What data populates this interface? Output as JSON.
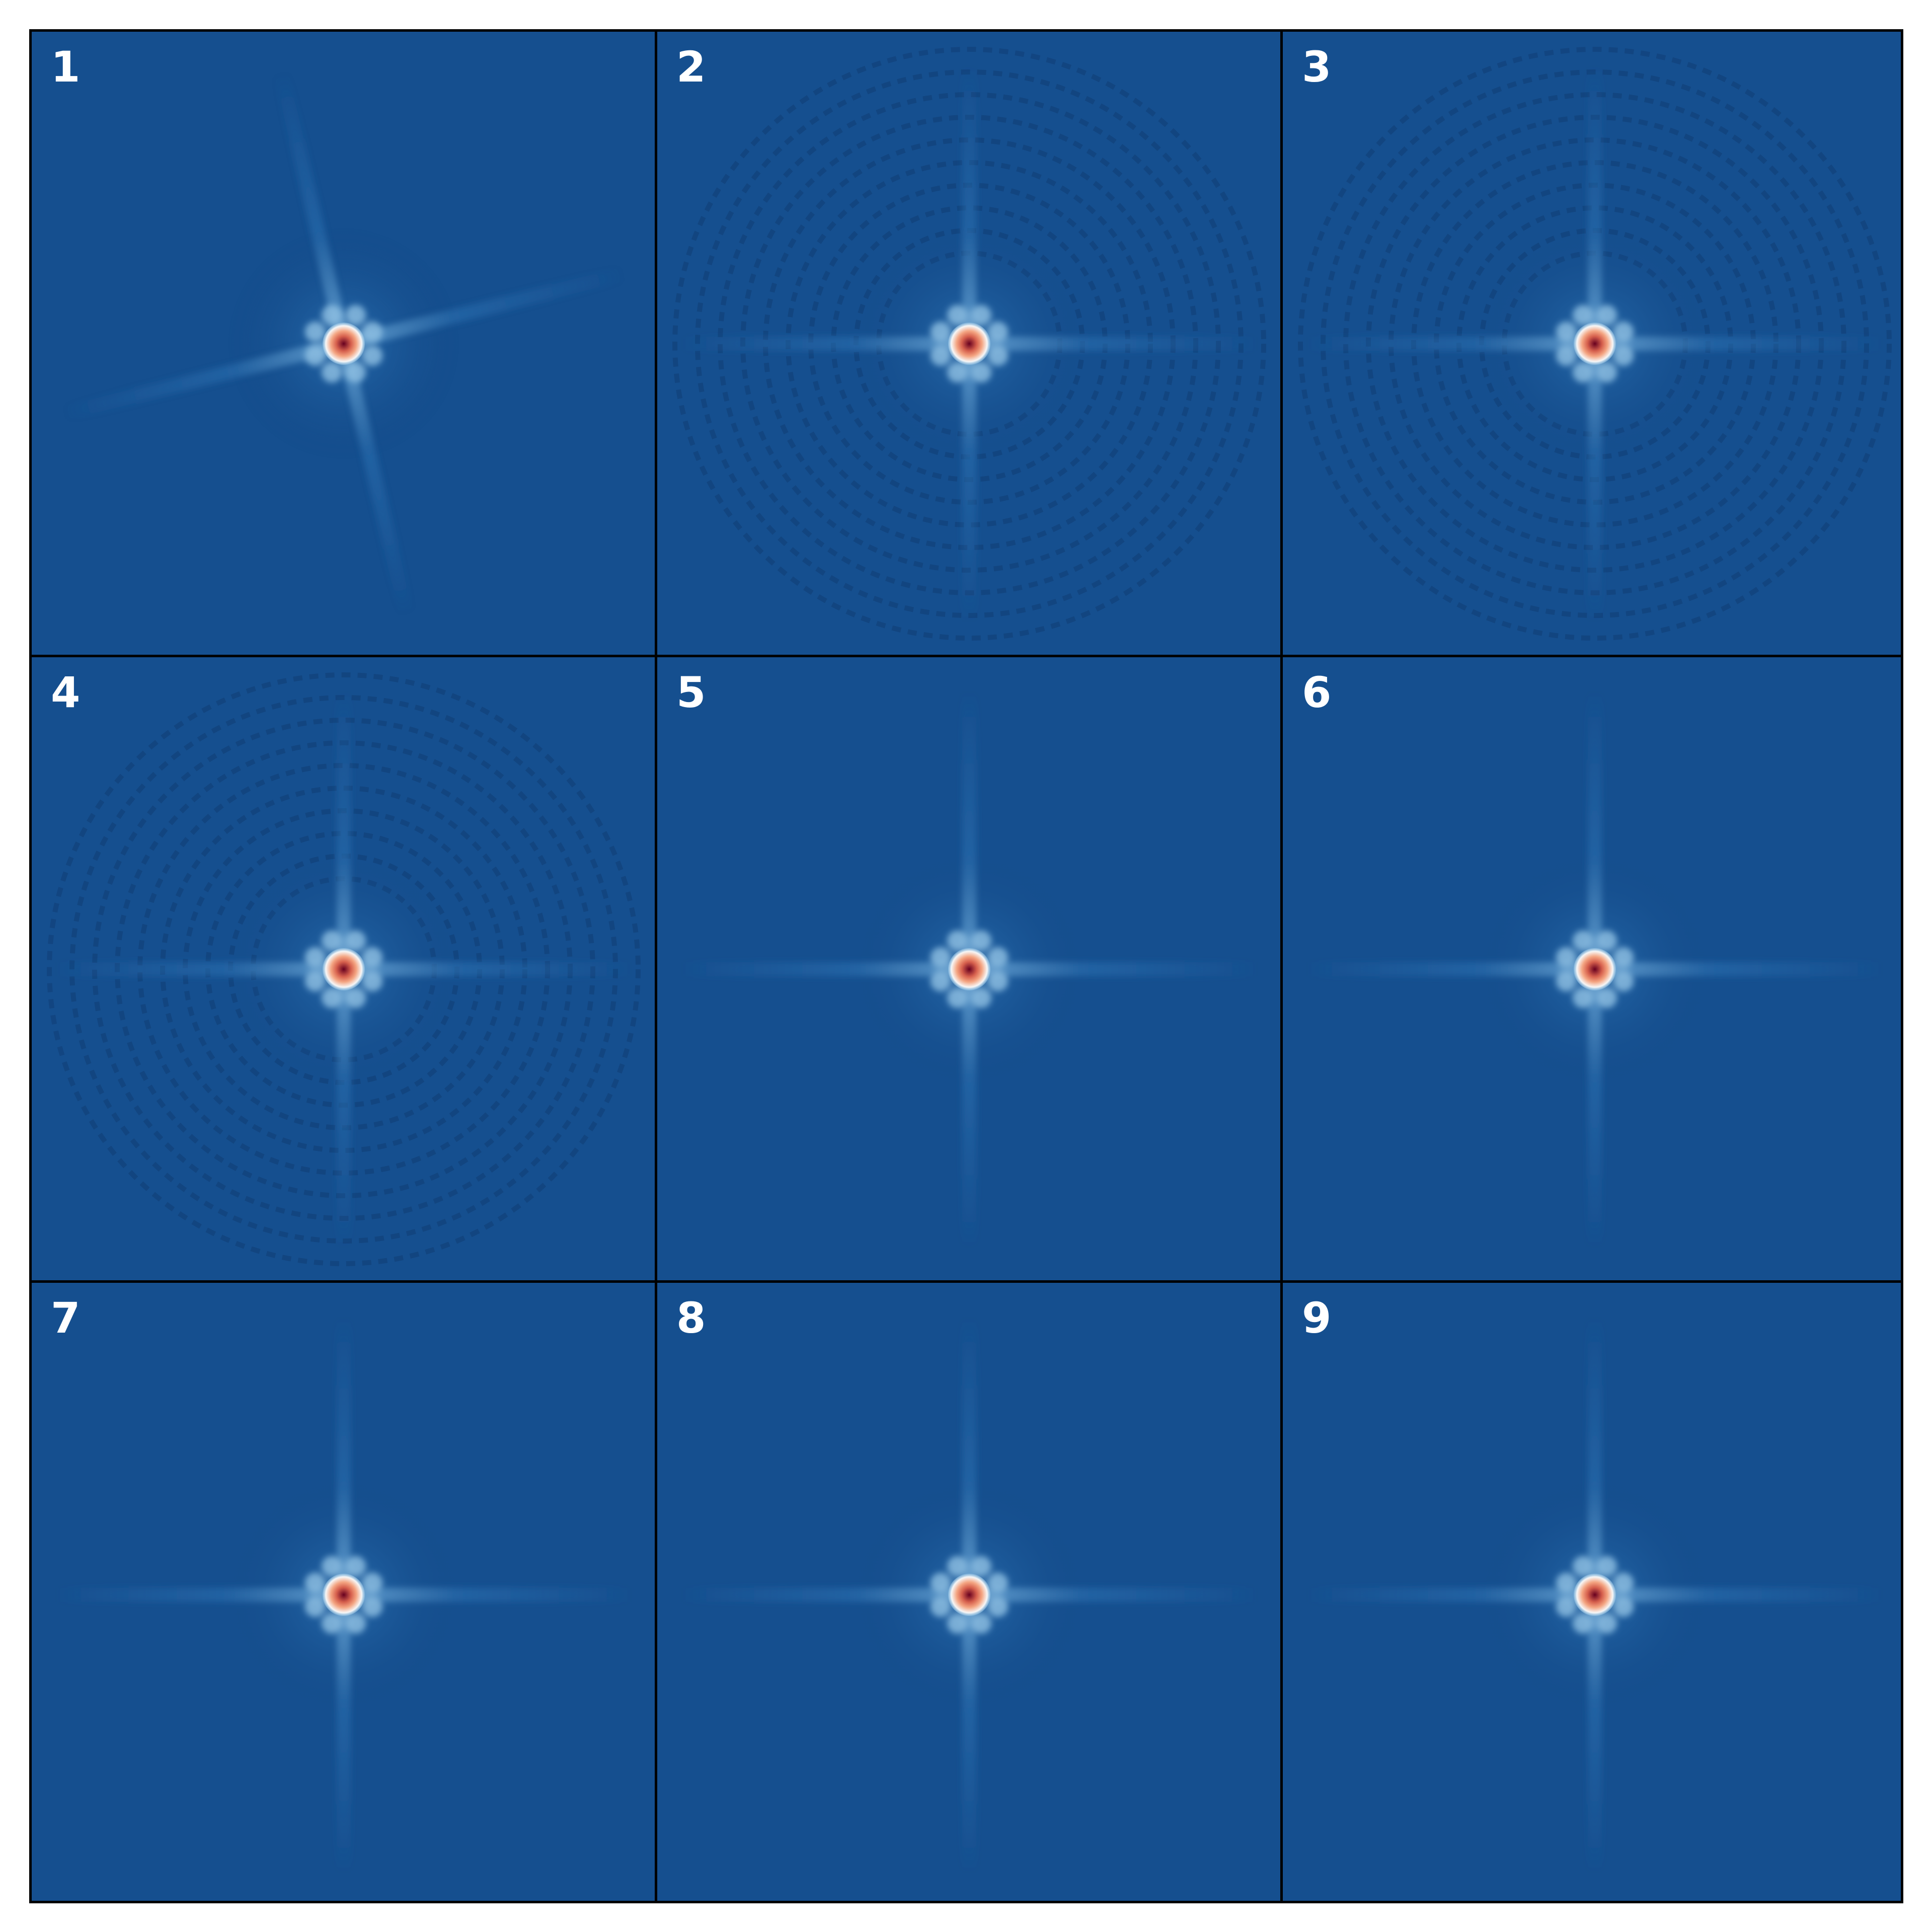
{
  "figure": {
    "background_color": "#154f8f",
    "border_color": "#000000",
    "colormap": [
      "#14447f",
      "#2a6fb0",
      "#8fc0e3",
      "#f7f7f7",
      "#f4a582",
      "#d6604d",
      "#67001f"
    ],
    "panels": [
      {
        "label": "1",
        "spike_angle_deg": -13,
        "horizontal_offset_deg": 14,
        "ring_artifacts": false
      },
      {
        "label": "2",
        "spike_angle_deg": 0,
        "horizontal_offset_deg": 0,
        "ring_artifacts": true
      },
      {
        "label": "3",
        "spike_angle_deg": 0,
        "horizontal_offset_deg": 0,
        "ring_artifacts": true
      },
      {
        "label": "4",
        "spike_angle_deg": 0,
        "horizontal_offset_deg": 0,
        "ring_artifacts": true
      },
      {
        "label": "5",
        "spike_angle_deg": 0,
        "horizontal_offset_deg": 0,
        "ring_artifacts": false
      },
      {
        "label": "6",
        "spike_angle_deg": 0,
        "horizontal_offset_deg": 0,
        "ring_artifacts": false
      },
      {
        "label": "7",
        "spike_angle_deg": 0,
        "horizontal_offset_deg": 0,
        "ring_artifacts": false
      },
      {
        "label": "8",
        "spike_angle_deg": 0,
        "horizontal_offset_deg": 0,
        "ring_artifacts": false
      },
      {
        "label": "9",
        "spike_angle_deg": 0,
        "horizontal_offset_deg": 0,
        "ring_artifacts": false
      }
    ]
  }
}
